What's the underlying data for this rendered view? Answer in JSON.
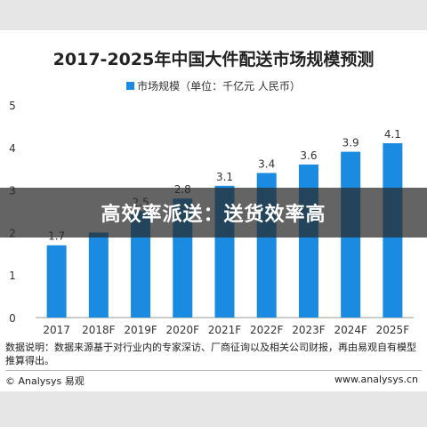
{
  "overlay_text": "高效率派送：送货效率高",
  "note": "数据说明：数据来源基于对行业内的专家深访、厂商征询以及相关公司财报，再由易观自有模型推算得出。",
  "footer": {
    "left": "© Analysys 易观",
    "right": "www.analysys.cn"
  },
  "colors": {
    "bar": "#1a8be0",
    "axis": "#999999"
  },
  "chart_data": {
    "type": "bar",
    "title": "2017-2025年中国大件配送市场规模预测",
    "legend": "市场规模（单位：千亿元 人民币）",
    "categories": [
      "2017",
      "2018F",
      "2019F",
      "2020F",
      "2021F",
      "2022F",
      "2023F",
      "2024F",
      "2025F"
    ],
    "values": [
      1.7,
      2.0,
      2.5,
      2.8,
      3.1,
      3.4,
      3.6,
      3.9,
      4.1
    ],
    "data_labels": [
      "1.7",
      "",
      "2.5",
      "2.8",
      "3.1",
      "3.4",
      "3.6",
      "3.9",
      "4.1"
    ],
    "y_ticks": [
      "0",
      "1",
      "2",
      "3",
      "4",
      "5"
    ],
    "ylim": [
      0,
      5
    ],
    "grid": false
  }
}
